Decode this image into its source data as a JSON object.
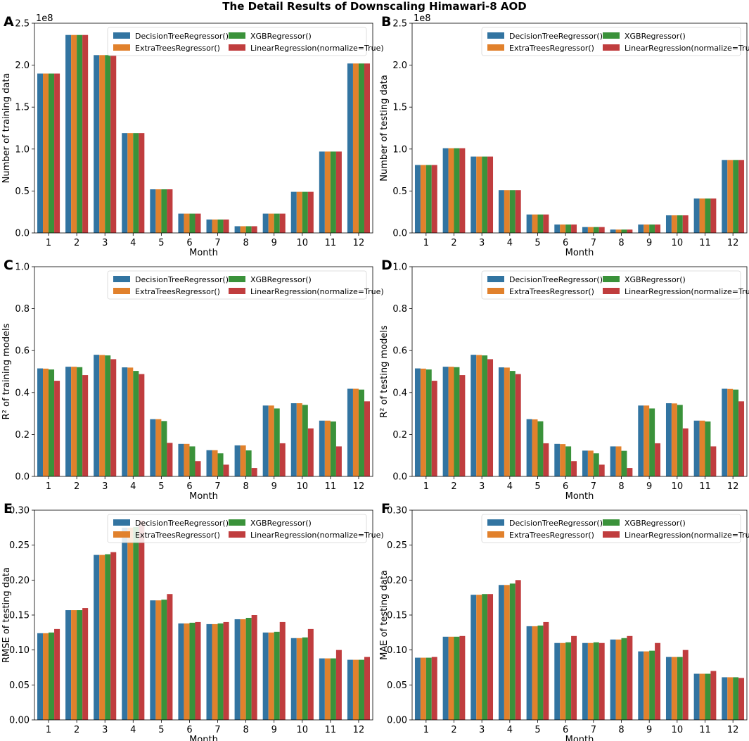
{
  "figure_title": "The Detail Results of Downscaling Himawari-8 AOD",
  "colors": {
    "DecisionTreeRegressor()": "#3274a1",
    "ExtraTreesRegressor()": "#e1812c",
    "XGBRegressor()": "#3a923a",
    "LinearRegression(normalize=True)": "#c03d3e"
  },
  "chart_data": [
    {
      "panel": "A",
      "type": "bar",
      "title": "",
      "xlabel": "Month",
      "ylabel": "Number of training data",
      "offset_text": "1e8",
      "categories": [
        "1",
        "2",
        "3",
        "4",
        "5",
        "6",
        "7",
        "8",
        "9",
        "10",
        "11",
        "12"
      ],
      "ylim": [
        0,
        2.5
      ],
      "yticks": [
        "0.0",
        "0.5",
        "1.0",
        "1.5",
        "2.0",
        "2.5"
      ],
      "legend": "top-right",
      "series": [
        {
          "name": "DecisionTreeRegressor()",
          "values": [
            1.9,
            2.36,
            2.12,
            1.19,
            0.52,
            0.23,
            0.16,
            0.08,
            0.23,
            0.49,
            0.97,
            2.02
          ]
        },
        {
          "name": "ExtraTreesRegressor()",
          "values": [
            1.9,
            2.36,
            2.12,
            1.19,
            0.52,
            0.23,
            0.16,
            0.08,
            0.23,
            0.49,
            0.97,
            2.02
          ]
        },
        {
          "name": "XGBRegressor()",
          "values": [
            1.9,
            2.36,
            2.12,
            1.19,
            0.52,
            0.23,
            0.16,
            0.08,
            0.23,
            0.49,
            0.97,
            2.02
          ]
        },
        {
          "name": "LinearRegression(normalize=True)",
          "values": [
            1.9,
            2.36,
            2.12,
            1.19,
            0.52,
            0.23,
            0.16,
            0.08,
            0.23,
            0.49,
            0.97,
            2.02
          ]
        }
      ]
    },
    {
      "panel": "B",
      "type": "bar",
      "title": "",
      "xlabel": "Month",
      "ylabel": "Number of testing data",
      "offset_text": "1e8",
      "categories": [
        "1",
        "2",
        "3",
        "4",
        "5",
        "6",
        "7",
        "8",
        "9",
        "10",
        "11",
        "12"
      ],
      "ylim": [
        0,
        2.5
      ],
      "yticks": [
        "0.0",
        "0.5",
        "1.0",
        "1.5",
        "2.0",
        "2.5"
      ],
      "legend": "top-right",
      "series": [
        {
          "name": "DecisionTreeRegressor()",
          "values": [
            0.81,
            1.01,
            0.91,
            0.51,
            0.22,
            0.1,
            0.07,
            0.04,
            0.1,
            0.21,
            0.41,
            0.87
          ]
        },
        {
          "name": "ExtraTreesRegressor()",
          "values": [
            0.81,
            1.01,
            0.91,
            0.51,
            0.22,
            0.1,
            0.07,
            0.04,
            0.1,
            0.21,
            0.41,
            0.87
          ]
        },
        {
          "name": "XGBRegressor()",
          "values": [
            0.81,
            1.01,
            0.91,
            0.51,
            0.22,
            0.1,
            0.07,
            0.04,
            0.1,
            0.21,
            0.41,
            0.87
          ]
        },
        {
          "name": "LinearRegression(normalize=True)",
          "values": [
            0.81,
            1.01,
            0.91,
            0.51,
            0.22,
            0.1,
            0.07,
            0.04,
            0.1,
            0.21,
            0.41,
            0.87
          ]
        }
      ]
    },
    {
      "panel": "C",
      "type": "bar",
      "title": "",
      "xlabel": "Month",
      "ylabel": "R² of training models",
      "offset_text": "",
      "categories": [
        "1",
        "2",
        "3",
        "4",
        "5",
        "6",
        "7",
        "8",
        "9",
        "10",
        "11",
        "12"
      ],
      "ylim": [
        0,
        1.0
      ],
      "yticks": [
        "0.0",
        "0.2",
        "0.4",
        "0.6",
        "0.8",
        "1.0"
      ],
      "legend": "top-right",
      "series": [
        {
          "name": "DecisionTreeRegressor()",
          "values": [
            0.515,
            0.523,
            0.58,
            0.52,
            0.273,
            0.155,
            0.125,
            0.148,
            0.338,
            0.349,
            0.266,
            0.418
          ]
        },
        {
          "name": "ExtraTreesRegressor()",
          "values": [
            0.514,
            0.523,
            0.579,
            0.519,
            0.273,
            0.155,
            0.125,
            0.148,
            0.338,
            0.349,
            0.266,
            0.418
          ]
        },
        {
          "name": "XGBRegressor()",
          "values": [
            0.51,
            0.521,
            0.577,
            0.503,
            0.264,
            0.143,
            0.11,
            0.124,
            0.324,
            0.341,
            0.262,
            0.414
          ]
        },
        {
          "name": "LinearRegression(normalize=True)",
          "values": [
            0.456,
            0.483,
            0.559,
            0.488,
            0.16,
            0.073,
            0.056,
            0.04,
            0.158,
            0.229,
            0.143,
            0.358
          ]
        }
      ]
    },
    {
      "panel": "D",
      "type": "bar",
      "title": "",
      "xlabel": "Month",
      "ylabel": "R² of testing models",
      "offset_text": "",
      "categories": [
        "1",
        "2",
        "3",
        "4",
        "5",
        "6",
        "7",
        "8",
        "9",
        "10",
        "11",
        "12"
      ],
      "ylim": [
        0,
        1.0
      ],
      "yticks": [
        "0.0",
        "0.2",
        "0.4",
        "0.6",
        "0.8",
        "1.0"
      ],
      "legend": "top-right",
      "series": [
        {
          "name": "DecisionTreeRegressor()",
          "values": [
            0.515,
            0.523,
            0.58,
            0.52,
            0.273,
            0.155,
            0.123,
            0.143,
            0.338,
            0.349,
            0.266,
            0.418
          ]
        },
        {
          "name": "ExtraTreesRegressor()",
          "values": [
            0.514,
            0.523,
            0.579,
            0.519,
            0.272,
            0.154,
            0.123,
            0.143,
            0.338,
            0.348,
            0.266,
            0.417
          ]
        },
        {
          "name": "XGBRegressor()",
          "values": [
            0.51,
            0.521,
            0.577,
            0.503,
            0.263,
            0.143,
            0.11,
            0.122,
            0.324,
            0.341,
            0.262,
            0.414
          ]
        },
        {
          "name": "LinearRegression(normalize=True)",
          "values": [
            0.456,
            0.483,
            0.559,
            0.488,
            0.158,
            0.073,
            0.056,
            0.04,
            0.158,
            0.229,
            0.143,
            0.358
          ]
        }
      ]
    },
    {
      "panel": "E",
      "type": "bar",
      "title": "",
      "xlabel": "Month",
      "ylabel": "RMSE of testing data",
      "offset_text": "",
      "categories": [
        "1",
        "2",
        "3",
        "4",
        "5",
        "6",
        "7",
        "8",
        "9",
        "10",
        "11",
        "12"
      ],
      "ylim": [
        0,
        0.3
      ],
      "yticks": [
        "0.00",
        "0.05",
        "0.10",
        "0.15",
        "0.20",
        "0.25",
        "0.30"
      ],
      "legend": "top-right",
      "series": [
        {
          "name": "DecisionTreeRegressor()",
          "values": [
            0.124,
            0.157,
            0.236,
            0.275,
            0.171,
            0.138,
            0.137,
            0.144,
            0.125,
            0.117,
            0.088,
            0.086
          ]
        },
        {
          "name": "ExtraTreesRegressor()",
          "values": [
            0.124,
            0.157,
            0.236,
            0.275,
            0.171,
            0.138,
            0.137,
            0.144,
            0.125,
            0.117,
            0.088,
            0.086
          ]
        },
        {
          "name": "XGBRegressor()",
          "values": [
            0.125,
            0.157,
            0.237,
            0.276,
            0.172,
            0.139,
            0.138,
            0.146,
            0.126,
            0.118,
            0.088,
            0.086
          ]
        },
        {
          "name": "LinearRegression(normalize=True)",
          "values": [
            0.13,
            0.16,
            0.24,
            0.285,
            0.18,
            0.14,
            0.14,
            0.15,
            0.14,
            0.13,
            0.1,
            0.09
          ]
        }
      ]
    },
    {
      "panel": "F",
      "type": "bar",
      "title": "",
      "xlabel": "Month",
      "ylabel": "MAE of testing data",
      "offset_text": "",
      "categories": [
        "1",
        "2",
        "3",
        "4",
        "5",
        "6",
        "7",
        "8",
        "9",
        "10",
        "11",
        "12"
      ],
      "ylim": [
        0,
        0.3
      ],
      "yticks": [
        "0.00",
        "0.05",
        "0.10",
        "0.15",
        "0.20",
        "0.25",
        "0.30"
      ],
      "legend": "top-right",
      "series": [
        {
          "name": "DecisionTreeRegressor()",
          "values": [
            0.089,
            0.119,
            0.179,
            0.193,
            0.134,
            0.11,
            0.11,
            0.115,
            0.098,
            0.09,
            0.066,
            0.061
          ]
        },
        {
          "name": "ExtraTreesRegressor()",
          "values": [
            0.089,
            0.119,
            0.179,
            0.193,
            0.134,
            0.11,
            0.11,
            0.115,
            0.098,
            0.09,
            0.066,
            0.061
          ]
        },
        {
          "name": "XGBRegressor()",
          "values": [
            0.089,
            0.119,
            0.18,
            0.195,
            0.135,
            0.111,
            0.111,
            0.117,
            0.099,
            0.09,
            0.066,
            0.061
          ]
        },
        {
          "name": "LinearRegression(normalize=True)",
          "values": [
            0.09,
            0.12,
            0.18,
            0.2,
            0.14,
            0.12,
            0.11,
            0.12,
            0.11,
            0.1,
            0.07,
            0.06
          ]
        }
      ]
    }
  ]
}
